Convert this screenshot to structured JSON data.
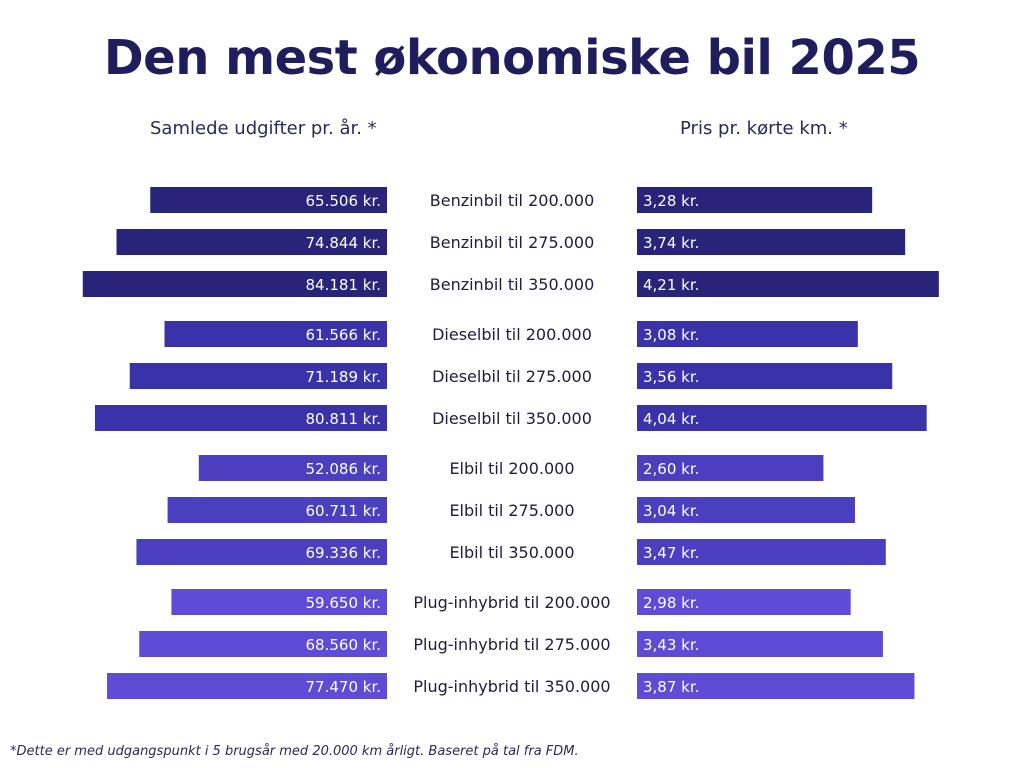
{
  "title": "Den mest økonomiske bil 2025",
  "left_heading": "Samlede udgifter pr. år. *",
  "right_heading": "Pris pr. kørte km. *",
  "footnote": "*Dette er med udgangspunkt i 5 brugsår med 20.000 km årligt. Baseret på tal fra FDM.",
  "colors": {
    "group": [
      "#28247a",
      "#3a32a8",
      "#4a3fbf",
      "#5e4bd6"
    ],
    "text_dark": "#1f1d5c"
  },
  "chart_data": [
    {
      "type": "bar",
      "orientation": "horizontal-left",
      "title": "Samlede udgifter pr. år. *",
      "categories": [
        "Benzinbil til 200.000",
        "Benzinbil til 275.000",
        "Benzinbil til 350.000",
        "Dieselbil til 200.000",
        "Dieselbil til 275.000",
        "Dieselbil til 350.000",
        "Elbil til 200.000",
        "Elbil til 275.000",
        "Elbil til 350.000",
        "Plug-inhybrid til 200.000",
        "Plug-inhybrid til 275.000",
        "Plug-inhybrid til 350.000"
      ],
      "values": [
        65506,
        74844,
        84181,
        61566,
        71189,
        80811,
        52086,
        60711,
        69336,
        59650,
        68560,
        77470
      ],
      "labels": [
        "65.506 kr.",
        "74.844 kr.",
        "84.181 kr.",
        "61.566 kr.",
        "71.189 kr.",
        "80.811 kr.",
        "52.086 kr.",
        "60.711 kr.",
        "69.336 kr.",
        "59.650 kr.",
        "68.560 kr.",
        "77.470 kr."
      ],
      "groups": [
        0,
        0,
        0,
        1,
        1,
        1,
        2,
        2,
        2,
        3,
        3,
        3
      ]
    },
    {
      "type": "bar",
      "orientation": "horizontal-right",
      "title": "Pris pr. kørte km. *",
      "categories": [
        "Benzinbil til 200.000",
        "Benzinbil til 275.000",
        "Benzinbil til 350.000",
        "Dieselbil til 200.000",
        "Dieselbil til 275.000",
        "Dieselbil til 350.000",
        "Elbil til 200.000",
        "Elbil til 275.000",
        "Elbil til 350.000",
        "Plug-inhybrid til 200.000",
        "Plug-inhybrid til 275.000",
        "Plug-inhybrid til 350.000"
      ],
      "values": [
        3.28,
        3.74,
        4.21,
        3.08,
        3.56,
        4.04,
        2.6,
        3.04,
        3.47,
        2.98,
        3.43,
        3.87
      ],
      "labels": [
        "3,28 kr.",
        "3,74 kr.",
        "4,21 kr.",
        "3,08 kr.",
        "3,56 kr.",
        "4,04 kr.",
        "2,60 kr.",
        "3,04 kr.",
        "3,47 kr.",
        "2,98 kr.",
        "3,43 kr.",
        "3,87 kr."
      ],
      "groups": [
        0,
        0,
        0,
        1,
        1,
        1,
        2,
        2,
        2,
        3,
        3,
        3
      ]
    }
  ]
}
